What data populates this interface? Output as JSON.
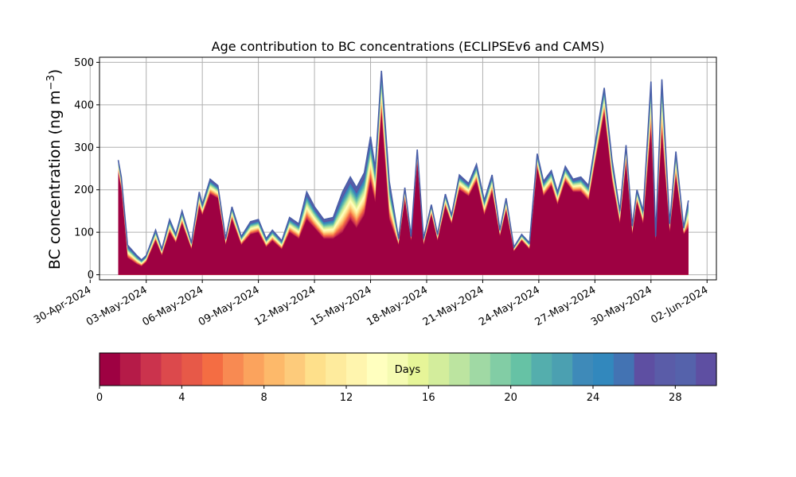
{
  "chart_data": {
    "type": "area",
    "title": "Age contribution to BC concentrations (ECLIPSEv6 and CAMS)",
    "ylabel": "BC concentration (ng m",
    "ylabel_sup": "−3",
    "ylabel_close": ")",
    "xlabel": "",
    "ylim": [
      -12,
      512
    ],
    "yticks": [
      0,
      100,
      200,
      300,
      400,
      500
    ],
    "x_start": "2024-04-30",
    "xlim": [
      "2024-04-30T12:00",
      "2024-06-02T12:00"
    ],
    "xtick_labels": [
      "30-Apr-2024",
      "03-May-2024",
      "06-May-2024",
      "09-May-2024",
      "12-May-2024",
      "15-May-2024",
      "18-May-2024",
      "21-May-2024",
      "24-May-2024",
      "27-May-2024",
      "30-May-2024",
      "02-Jun-2024"
    ],
    "grid": true,
    "stacked_series_note": "",
    "time": [
      "2024-05-01T12:00",
      "2024-05-01T16:00",
      "2024-05-02T00:00",
      "2024-05-02T12:00",
      "2024-05-02T18:00",
      "2024-05-03T00:00",
      "2024-05-03T12:00",
      "2024-05-03T20:00",
      "2024-05-04T06:00",
      "2024-05-04T14:00",
      "2024-05-04T22:00",
      "2024-05-05T10:00",
      "2024-05-05T20:00",
      "2024-05-06T00:00",
      "2024-05-06T10:00",
      "2024-05-06T20:00",
      "2024-05-07T06:00",
      "2024-05-07T14:00",
      "2024-05-08T02:00",
      "2024-05-08T14:00",
      "2024-05-09T00:00",
      "2024-05-09T10:00",
      "2024-05-09T18:00",
      "2024-05-10T06:00",
      "2024-05-10T16:00",
      "2024-05-11T04:00",
      "2024-05-11T14:00",
      "2024-05-12T00:00",
      "2024-05-12T12:00",
      "2024-05-13T00:00",
      "2024-05-13T12:00",
      "2024-05-13T22:00",
      "2024-05-14T06:00",
      "2024-05-14T16:00",
      "2024-05-15T00:00",
      "2024-05-15T06:00",
      "2024-05-15T14:00",
      "2024-05-16T00:00",
      "2024-05-16T12:00",
      "2024-05-16T20:00",
      "2024-05-17T04:00",
      "2024-05-17T12:00",
      "2024-05-17T20:00",
      "2024-05-18T06:00",
      "2024-05-18T14:00",
      "2024-05-19T00:00",
      "2024-05-19T08:00",
      "2024-05-19T18:00",
      "2024-05-20T06:00",
      "2024-05-20T16:00",
      "2024-05-21T02:00",
      "2024-05-21T12:00",
      "2024-05-21T22:00",
      "2024-05-22T06:00",
      "2024-05-22T16:00",
      "2024-05-23T02:00",
      "2024-05-23T12:00",
      "2024-05-23T22:00",
      "2024-05-24T06:00",
      "2024-05-24T16:00",
      "2024-05-25T00:00",
      "2024-05-25T10:00",
      "2024-05-25T20:00",
      "2024-05-26T06:00",
      "2024-05-26T16:00",
      "2024-05-27T00:00",
      "2024-05-27T12:00",
      "2024-05-27T22:00",
      "2024-05-28T08:00",
      "2024-05-28T16:00",
      "2024-05-29T00:00",
      "2024-05-29T06:00",
      "2024-05-29T14:00",
      "2024-05-30T00:00",
      "2024-05-30T06:00",
      "2024-05-30T14:00",
      "2024-05-31T00:00",
      "2024-05-31T08:00",
      "2024-05-31T18:00",
      "2024-06-01T00:00"
    ],
    "total": [
      270,
      230,
      70,
      45,
      35,
      45,
      105,
      60,
      130,
      95,
      150,
      75,
      195,
      165,
      225,
      210,
      85,
      160,
      90,
      125,
      130,
      85,
      105,
      80,
      135,
      120,
      195,
      160,
      130,
      135,
      195,
      230,
      205,
      240,
      325,
      250,
      480,
      220,
      85,
      205,
      90,
      295,
      85,
      165,
      95,
      190,
      140,
      235,
      215,
      260,
      175,
      235,
      105,
      180,
      65,
      95,
      75,
      285,
      220,
      245,
      195,
      255,
      225,
      230,
      210,
      305,
      440,
      270,
      150,
      305,
      115,
      200,
      150,
      455,
      90,
      460,
      120,
      290,
      110,
      175
    ],
    "fresh": [
      240,
      200,
      40,
      25,
      20,
      30,
      80,
      45,
      100,
      75,
      120,
      60,
      160,
      140,
      190,
      180,
      70,
      130,
      70,
      95,
      100,
      65,
      80,
      60,
      100,
      85,
      130,
      110,
      85,
      85,
      100,
      130,
      110,
      140,
      220,
      170,
      380,
      130,
      70,
      175,
      80,
      260,
      70,
      140,
      80,
      160,
      120,
      200,
      185,
      220,
      140,
      195,
      90,
      150,
      55,
      80,
      60,
      250,
      185,
      210,
      165,
      220,
      195,
      195,
      175,
      260,
      380,
      220,
      120,
      260,
      95,
      170,
      120,
      340,
      80,
      330,
      100,
      230,
      95,
      110
    ],
    "colorbar": {
      "label": "Days",
      "range": [
        0,
        30
      ],
      "ticks": [
        0,
        4,
        8,
        12,
        16,
        20,
        24,
        28
      ],
      "segments": 30,
      "colormap": "Spectral",
      "colors": [
        "#9e0142",
        "#b51b48",
        "#cb334d",
        "#dc494c",
        "#e75948",
        "#f46d43",
        "#f88a52",
        "#fba35d",
        "#fdb96a",
        "#fdcb7b",
        "#fee08b",
        "#feeb9d",
        "#fff5ae",
        "#ffffbf",
        "#f5fbb2",
        "#e6f598",
        "#d3ed9c",
        "#bce4a0",
        "#a0d9a4",
        "#82cda5",
        "#66c2a5",
        "#54aead",
        "#4ba0b1",
        "#3e8ab9",
        "#3288bd",
        "#4373b3",
        "#5e4fa2",
        "#5a5ca8",
        "#5562ab",
        "#5e4fa2"
      ]
    }
  }
}
